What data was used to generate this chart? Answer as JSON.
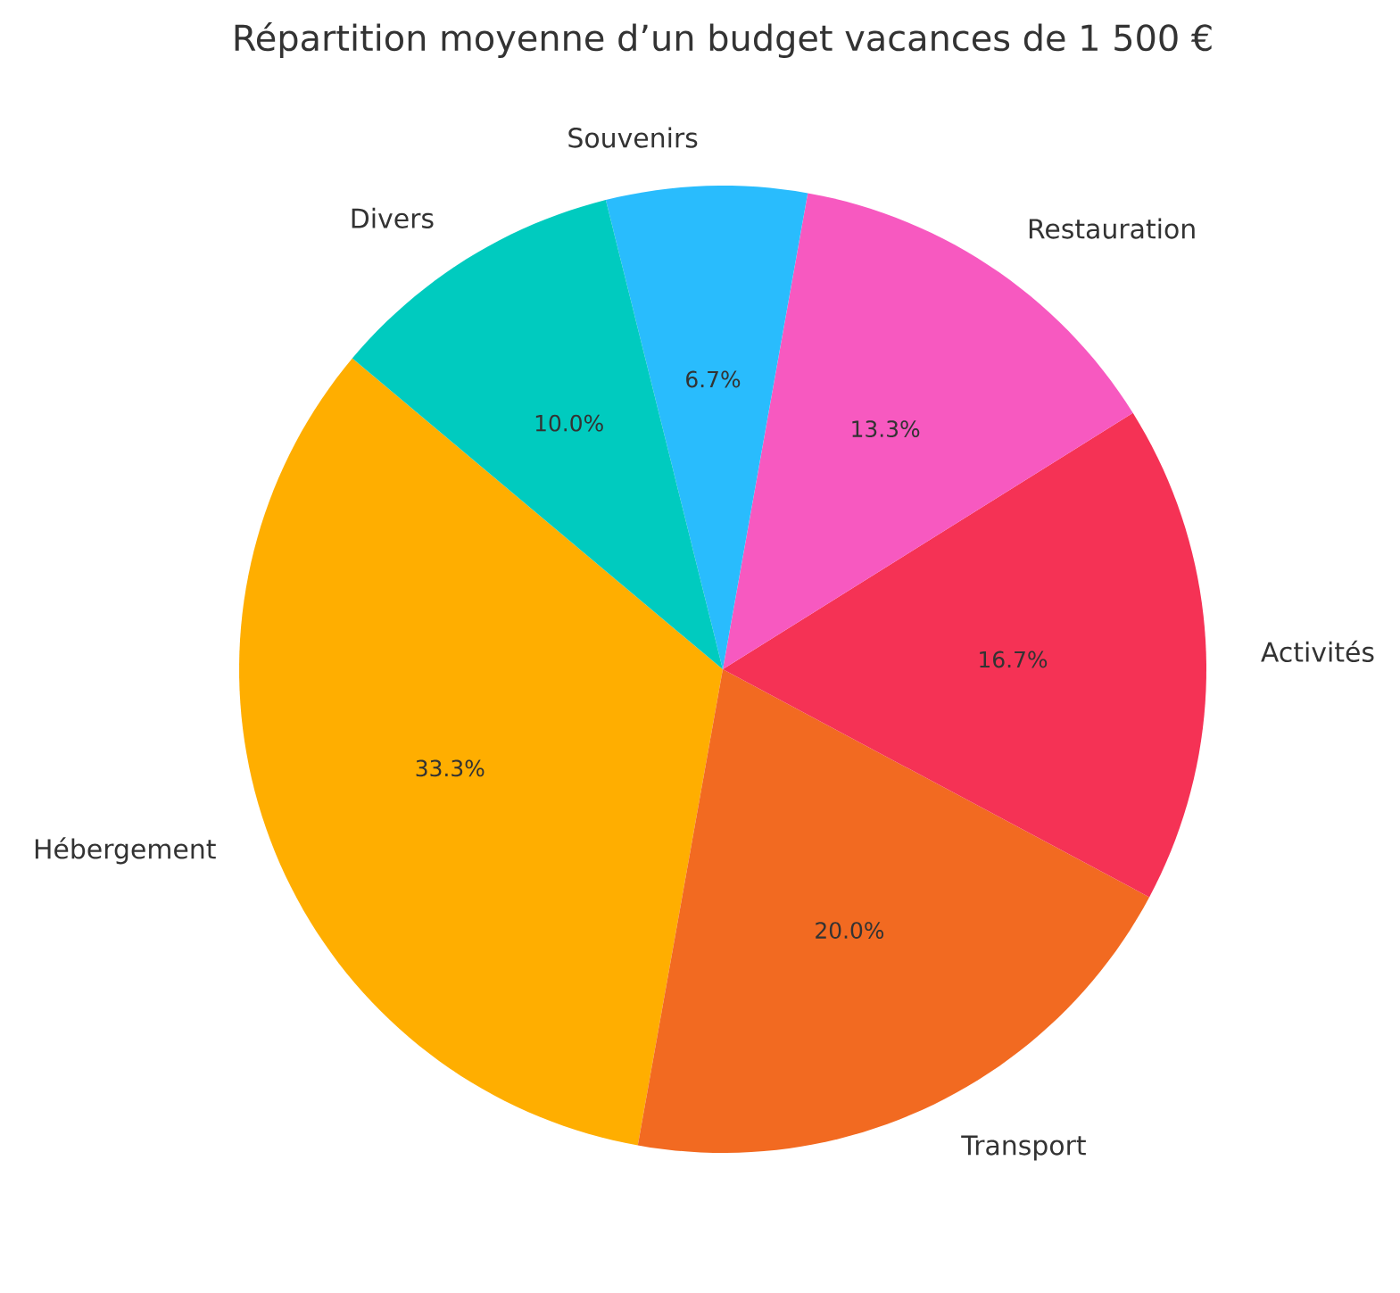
{
  "chart_data": {
    "type": "pie",
    "title": "Répartition moyenne d’un budget vacances de 1 500 €",
    "categories": [
      "Hébergement",
      "Transport",
      "Activités",
      "Restauration",
      "Souvenirs",
      "Divers"
    ],
    "values": [
      33.3,
      20.0,
      16.7,
      13.3,
      6.7,
      10.0
    ],
    "colors": [
      "#ffae00",
      "#f26a21",
      "#f53255",
      "#f759c0",
      "#29bcfd",
      "#00cbbf"
    ],
    "value_labels": [
      "33.3%",
      "20.0%",
      "16.7%",
      "13.3%",
      "6.7%",
      "10.0%"
    ]
  }
}
